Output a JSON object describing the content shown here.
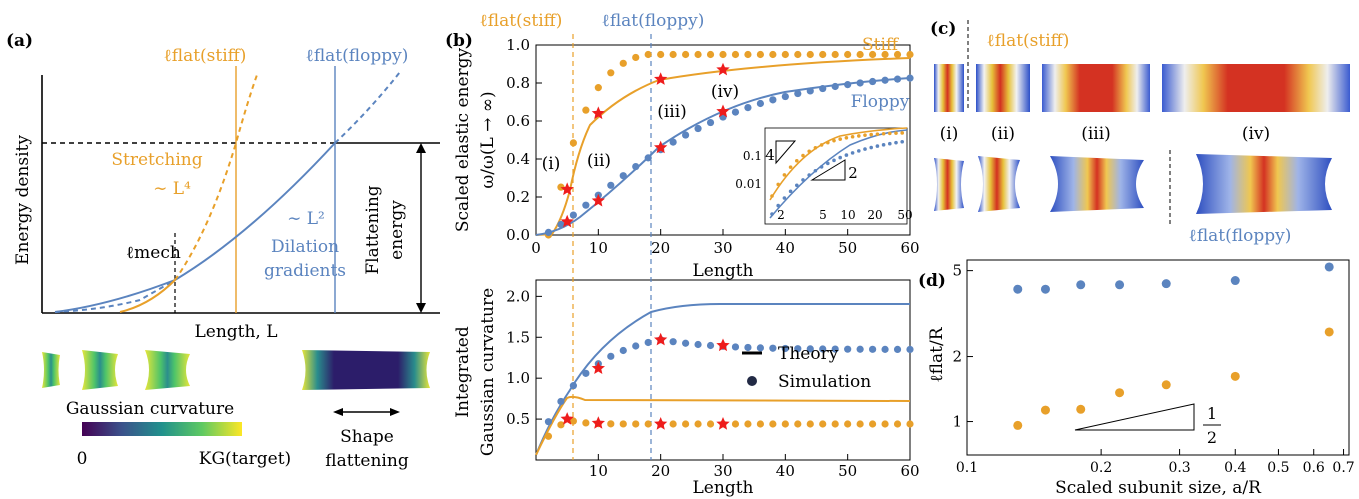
{
  "colors": {
    "stiff": "#e8a02a",
    "floppy": "#5b84bf",
    "star": "#ee1c1c",
    "black": "#000000"
  },
  "panel_a": {
    "label": "(a)",
    "ylabel": "Energy density",
    "xlabel": "Length, L",
    "lflat_stiff": "ℓflat(stiff)",
    "lflat_floppy": "ℓflat(floppy)",
    "stretching": "Stretching",
    "stretching_scale": "∼ L⁴",
    "dilation_scale": "∼ L²",
    "dilation_line1": "Dilation",
    "dilation_line2": "gradients",
    "lmech": "ℓmech",
    "flattening_line1": "Flattening",
    "flattening_line2": "energy",
    "colorbar_title": "Gaussian curvature",
    "colorbar_min": "0",
    "colorbar_max": "KG(target)",
    "shape_line1": "Shape",
    "shape_line2": "flattening"
  },
  "panel_b": {
    "label": "(b)",
    "lflat_stiff": "ℓflat(stiff)",
    "lflat_floppy": "ℓflat(floppy)",
    "top_ylabel_line1": "Scaled elastic energy",
    "top_ylabel_line2": "ω/ω(L → ∞)",
    "top_xlabel": "Length",
    "stiff_label": "Stiff",
    "floppy_label": "Floppy",
    "markers": [
      "(i)",
      "(ii)",
      "(iii)",
      "(iv)"
    ],
    "top_yticks": [
      "0.0",
      "0.2",
      "0.4",
      "0.6",
      "0.8",
      "1.0"
    ],
    "xticks": [
      "0",
      "10",
      "20",
      "30",
      "40",
      "50",
      "60"
    ],
    "inset_yticks": [
      "0.1",
      "0.01"
    ],
    "inset_xticks": [
      "2",
      "5",
      "10",
      "20",
      "50"
    ],
    "inset_slope_stiff": "4",
    "inset_slope_floppy": "2",
    "bottom_ylabel_line1": "Integrated",
    "bottom_ylabel_line2": "Gaussian curvature",
    "bottom_xlabel": "Length",
    "bottom_yticks": [
      "0.5",
      "1.0",
      "1.5",
      "2.0"
    ],
    "legend_theory": "Theory",
    "legend_simulation": "Simulation"
  },
  "panel_c": {
    "label": "(c)",
    "lflat_stiff": "ℓflat(stiff)",
    "lflat_floppy": "ℓflat(floppy)",
    "markers": [
      "(i)",
      "(ii)",
      "(iii)",
      "(iv)"
    ]
  },
  "panel_d": {
    "label": "(d)",
    "ylabel": "ℓflat/R",
    "xlabel": "Scaled subunit size, a/R",
    "yticks": [
      "1",
      "2",
      "5"
    ],
    "xticks": [
      "0.1",
      "0.2",
      "0.3",
      "0.4",
      "0.5",
      "0.6",
      "0.7"
    ],
    "slope_num": "1",
    "slope_den": "2"
  },
  "chart_data": [
    {
      "type": "line",
      "x": [
        5,
        6,
        10,
        20,
        30,
        60
      ],
      "series": [
        {
          "name": "Stiff",
          "values": [
            0.24,
            0.4,
            0.64,
            0.82,
            0.87,
            0.94
          ]
        },
        {
          "name": "Floppy",
          "values": [
            0.07,
            0.09,
            0.18,
            0.46,
            0.65,
            0.82
          ]
        }
      ],
      "xlabel": "Length",
      "ylabel": "Scaled elastic energy ω/ω(L → ∞)",
      "xlim": [
        0,
        60
      ],
      "ylim": [
        0,
        1.0
      ]
    },
    {
      "type": "line",
      "x": [
        0,
        5,
        10,
        20,
        30,
        60
      ],
      "series": [
        {
          "name": "Stiff",
          "values": [
            0.15,
            0.5,
            0.45,
            0.44,
            0.44,
            0.44
          ]
        },
        {
          "name": "Floppy",
          "values": [
            0.15,
            0.6,
            1.12,
            1.47,
            1.4,
            1.35
          ]
        }
      ],
      "xlabel": "Length",
      "ylabel": "Integrated Gaussian curvature",
      "xlim": [
        0,
        60
      ],
      "ylim": [
        0,
        2.2
      ]
    },
    {
      "type": "scatter",
      "x": [
        0.13,
        0.15,
        0.18,
        0.22,
        0.28,
        0.4,
        0.65
      ],
      "series": [
        {
          "name": "Floppy",
          "values": [
            4.1,
            4.1,
            4.3,
            4.3,
            4.35,
            4.5,
            5.2
          ]
        },
        {
          "name": "Stiff",
          "values": [
            0.96,
            1.13,
            1.14,
            1.36,
            1.48,
            1.62,
            2.6
          ]
        }
      ],
      "xlabel": "Scaled subunit size, a/R",
      "ylabel": "ℓflat/R",
      "xlim": [
        0.1,
        0.7
      ],
      "ylim": [
        0.7,
        5.5
      ],
      "xscale": "log",
      "yscale": "log"
    }
  ]
}
